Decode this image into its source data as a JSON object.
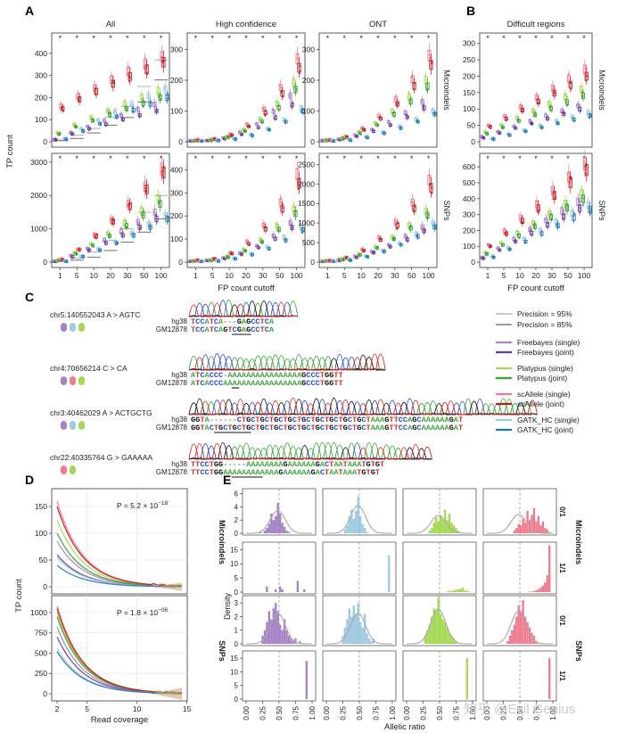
{
  "panel_labels": {
    "a": "A",
    "b": "B",
    "c": "C",
    "d": "D",
    "e": "E"
  },
  "panel_a": {
    "col_titles": [
      "All",
      "High confidence",
      "ONT"
    ],
    "row_labels": [
      "Microindels",
      "SNPs"
    ],
    "ylabel": "TP count",
    "xlabel": "FP count cutoff",
    "x_ticks": [
      "1",
      "5",
      "10",
      "20",
      "30",
      "50",
      "100"
    ],
    "star": "*",
    "y_ticks": {
      "all_micro": [
        0,
        100,
        200,
        300,
        400
      ],
      "hc_micro": [
        0,
        100,
        200,
        300
      ],
      "ont_micro": [
        0,
        100,
        200,
        300
      ],
      "all_snp": [
        0,
        1000,
        2000,
        3000
      ],
      "hc_snp": [
        0,
        100,
        200,
        300,
        400
      ],
      "ont_snp": [
        0,
        500,
        1000,
        1500,
        2000,
        2500
      ]
    }
  },
  "panel_b": {
    "col_title": "Difficult regions",
    "row_labels": [
      "Microindels",
      "SNPs"
    ],
    "xlabel": "FP count cutoff",
    "x_ticks": [
      "1",
      "5",
      "10",
      "20",
      "30",
      "50",
      "100"
    ],
    "y_ticks": {
      "micro": [
        0,
        50,
        100,
        150,
        200,
        250,
        300
      ],
      "snp": [
        0,
        100,
        200,
        300,
        400,
        500,
        600
      ]
    }
  },
  "panel_c": {
    "variants": [
      {
        "label": "chr5:140552043  A > AGTC",
        "hg38": "TCCATCA---GAGCCTCA",
        "gm": "TCCATCAGTCGAGCCTCA"
      },
      {
        "label": "chr4:70656214  C > CA",
        "hg38": "ATCACCC-AAAAAAAAAAAAAAAAGCCCTGGTT",
        "gm": "ATCACCCAAAAAAAAAAAAAAAAAGCCCTGGTT"
      },
      {
        "label": "chr3:40462029  A > ACTGCTG",
        "hg38": "GGTA------CTGCTGCTGCTGCTGCTGCTGCTGCTGCTAAAGTTCCAGCAAAAAAGAT",
        "gm": "GGTACTGCTGCTGCTGCTGCTGCTGCTGCTGCTGCTGCTAAAGTTCCAGCAAAAAAGAT"
      },
      {
        "label": "chr22:40335764  G > GAAAAA",
        "hg38": "TTCCTGG-----AAAAAAAAGAAAAAAGACTAATAAATGTGT",
        "gm": "TTCCTGGAAAAAAAAAAAAGAAAAAAGACTAATAAATGTGT"
      }
    ],
    "row_names": [
      "hg38",
      "GM12878"
    ]
  },
  "legend": {
    "precision": [
      {
        "label": "Precision = 95%",
        "color": "#b5b5b5"
      },
      {
        "label": "Precision = 85%",
        "color": "#7b7b7b"
      }
    ],
    "methods": [
      {
        "label": "Freebayes (single)",
        "color": "#a682c6"
      },
      {
        "label": "Freebayes (joint)",
        "color": "#6a3d9a"
      },
      {
        "label": "Platypus (single)",
        "color": "#a6d854"
      },
      {
        "label": "Platypus (joint)",
        "color": "#33a02c"
      },
      {
        "label": "scAllele (single)",
        "color": "#ef7c8e"
      },
      {
        "label": "scAllele (joint)",
        "color": "#c0181f"
      },
      {
        "label": "GATK_HC (single)",
        "color": "#9ecae1"
      },
      {
        "label": "GATK_HC (joint)",
        "color": "#1f78b4"
      }
    ]
  },
  "panel_d": {
    "ylabel": "TP count",
    "xlabel": "Read coverage",
    "top_p": "P = 5.2 × 10",
    "top_exp": "−18",
    "bottom_p": "P = 1.8 × 10",
    "bottom_exp": "−06",
    "top_yticks": [
      0,
      50,
      100,
      150
    ],
    "bottom_yticks": [
      0,
      250,
      500,
      750,
      1000
    ],
    "x_ticks": [
      2,
      5,
      10,
      15
    ]
  },
  "panel_e": {
    "ylabel": "Density",
    "xlabel": "Allelic ratio",
    "x_ticks": [
      "0.00",
      "0.25",
      "0.50",
      "0.75",
      "1.00"
    ],
    "row_group_labels": [
      "Microindels",
      "SNPs"
    ],
    "genotype_labels": [
      "0/1",
      "1/1",
      "0/1",
      "1/1"
    ],
    "y_ticks": [
      [
        0,
        2,
        4,
        6
      ],
      [
        0,
        5,
        10,
        15
      ],
      [
        0,
        1,
        2,
        3
      ],
      [
        0,
        5,
        10,
        15
      ]
    ],
    "y_max": [
      6.5,
      17,
      3.4,
      17
    ],
    "colors": [
      "#a682c6",
      "#9ecae1",
      "#a6d854",
      "#ef7c8e"
    ],
    "hist": [
      [
        [
          0,
          0,
          0,
          0,
          0,
          0,
          0.2,
          0,
          0.4,
          0.8,
          1.4,
          3.0,
          2.0,
          2.6,
          4.6,
          3.0,
          1.6,
          1.0,
          0.4,
          0.2,
          0,
          0,
          0,
          0,
          0,
          0,
          0,
          0,
          0,
          0
        ],
        [
          0,
          0,
          0,
          0,
          0,
          0,
          0,
          0,
          0.6,
          1.2,
          2.6,
          3.6,
          2.2,
          3.4,
          5.6,
          2.6,
          1.4,
          0.8,
          0.2,
          0,
          0,
          0,
          0,
          0,
          0,
          0,
          0,
          0,
          0,
          0
        ],
        [
          0,
          0,
          0,
          0,
          0,
          0,
          0,
          0,
          0,
          0,
          0.4,
          0.8,
          1.6,
          2.4,
          1.8,
          2.8,
          2.2,
          3.6,
          2.0,
          3.0,
          1.6,
          1.2,
          0.8,
          0.4,
          0.2,
          0,
          0,
          0,
          0,
          0
        ],
        [
          0,
          0,
          0,
          0,
          0,
          0,
          0,
          0,
          0,
          0,
          0,
          0,
          0.4,
          0.8,
          1.4,
          1.2,
          2.2,
          1.6,
          3.4,
          2.0,
          2.8,
          3.8,
          1.8,
          2.6,
          1.2,
          1.8,
          0.8,
          0.6,
          0.2,
          0
        ]
      ],
      [
        [
          0,
          0,
          0,
          0,
          0,
          0,
          0,
          0,
          0,
          2,
          0,
          0,
          0,
          1,
          0,
          2,
          1,
          0,
          0,
          0,
          0,
          0,
          0,
          4,
          0,
          0,
          1,
          0,
          0,
          0
        ],
        [
          0,
          0,
          0,
          0,
          0,
          0,
          0,
          0,
          0,
          0,
          0,
          0,
          0,
          0,
          0,
          0,
          0,
          0,
          0,
          0,
          0,
          0,
          0,
          0,
          0,
          0,
          0,
          0,
          13,
          0
        ],
        [
          0,
          0,
          0,
          0,
          0,
          0,
          0,
          0,
          0,
          0,
          0,
          0,
          0,
          0,
          0,
          0,
          0,
          0,
          0.2,
          0.4,
          0.4,
          0.6,
          0.8,
          1.0,
          1.2,
          1.6,
          0.6,
          0.4,
          0.2,
          0
        ],
        [
          0,
          0,
          0,
          0,
          0,
          0,
          0,
          0,
          0,
          0,
          0,
          0,
          0,
          0,
          0,
          0,
          0,
          0,
          0,
          0.2,
          0.2,
          0.4,
          0.6,
          1.0,
          1.6,
          2.2,
          3.4,
          6.0,
          16.5,
          0
        ]
      ],
      [
        [
          0,
          0,
          0,
          0,
          0,
          0,
          0,
          0.6,
          1.0,
          1.6,
          2.4,
          1.8,
          2.6,
          3.0,
          2.4,
          1.4,
          1.0,
          1.8,
          1.0,
          0.6,
          0.4,
          0.2,
          0.4,
          0,
          0.2,
          0,
          0,
          0,
          0,
          0
        ],
        [
          0,
          0,
          0,
          0,
          0,
          0,
          0,
          0.6,
          1.2,
          1.8,
          2.6,
          2.0,
          2.8,
          2.2,
          3.0,
          1.6,
          1.2,
          2.2,
          0.8,
          0.4,
          0.2,
          0.4,
          0,
          0,
          0,
          0,
          0,
          0,
          0,
          0
        ],
        [
          0,
          0,
          0,
          0,
          0,
          0,
          0,
          0,
          0.6,
          1.0,
          1.4,
          2.0,
          2.6,
          2.4,
          3.4,
          2.2,
          1.8,
          1.6,
          1.2,
          0.8,
          0.6,
          0.4,
          0.2,
          0,
          0,
          0,
          0,
          0,
          0,
          0
        ],
        [
          0,
          0,
          0,
          0,
          0,
          0,
          0,
          0,
          0,
          0.2,
          0.6,
          1.0,
          1.4,
          2.0,
          2.8,
          2.4,
          3.2,
          2.0,
          1.6,
          1.2,
          0.8,
          0.6,
          0.2,
          0,
          0,
          0,
          0,
          0,
          0,
          0
        ]
      ],
      [
        [
          0,
          0,
          0,
          0,
          0,
          0,
          0,
          0,
          0,
          0,
          0,
          0,
          0,
          0,
          0,
          0,
          0,
          0,
          0,
          0,
          0,
          0,
          0,
          0,
          0,
          0,
          0,
          14,
          0,
          0
        ],
        [
          0,
          0,
          0,
          0,
          0,
          0,
          0,
          0,
          0,
          0,
          0,
          0,
          0,
          0,
          0,
          0,
          0,
          0,
          0,
          0,
          0,
          0,
          0,
          0,
          0,
          0,
          0,
          0,
          0,
          0
        ],
        [
          0,
          0,
          0,
          0,
          0,
          0,
          0,
          0,
          0,
          0,
          0,
          0,
          0,
          0,
          0,
          0,
          0,
          0,
          0,
          0,
          0,
          0,
          0,
          0,
          0,
          0,
          0,
          15,
          0,
          0
        ],
        [
          0,
          0,
          0,
          0,
          0,
          0,
          0,
          0,
          0,
          0,
          0,
          0,
          0,
          0,
          0,
          0,
          0,
          0,
          0,
          0,
          0,
          0,
          0,
          0,
          0,
          0,
          0,
          0,
          15,
          0
        ]
      ]
    ]
  },
  "watermark": "知乎 @Evil Genius"
}
